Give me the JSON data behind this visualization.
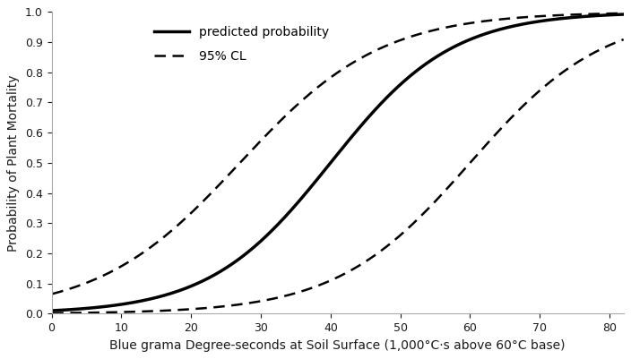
{
  "title": "",
  "xlabel": "Blue grama Degree-seconds at Soil Surface (1,000°C·s above 60°C base)",
  "ylabel": "Probability of Plant Mortality",
  "xlim": [
    0,
    82
  ],
  "ylim": [
    0.0,
    1.0
  ],
  "xticks": [
    0,
    10,
    20,
    30,
    40,
    50,
    60,
    70,
    80
  ],
  "yticks": [
    0.0,
    0.1,
    0.2,
    0.3,
    0.4,
    0.5,
    0.6,
    0.7,
    0.8,
    0.9,
    1.0
  ],
  "line_color": "#000000",
  "background_color": "#ffffff",
  "legend_labels": [
    "predicted probability",
    "95% CL"
  ],
  "pred_b0": -4.62,
  "pred_b1": 0.115,
  "upper_b0": -3.22,
  "upper_b1": 0.115,
  "lower_b0": -6.9,
  "lower_b1": 0.115,
  "xlabel_fontsize": 10,
  "ylabel_fontsize": 10,
  "tick_fontsize": 9,
  "pred_lw": 2.5,
  "ci_lw": 1.8
}
